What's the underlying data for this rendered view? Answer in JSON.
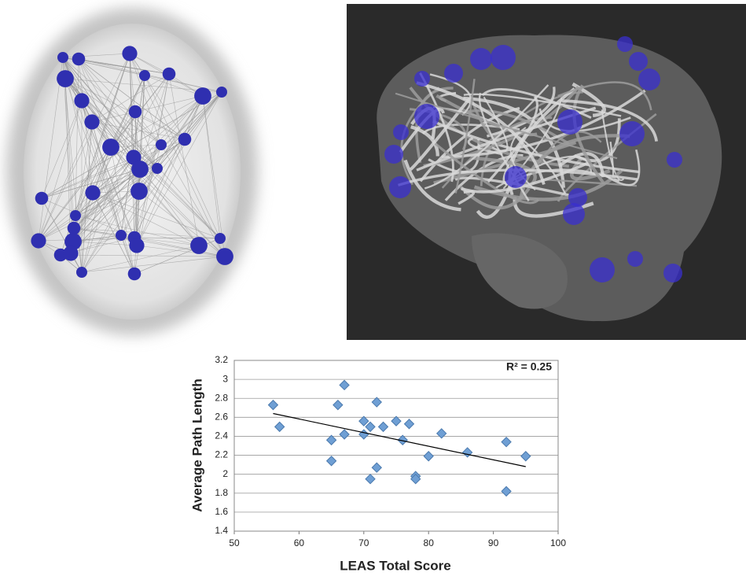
{
  "chart_data": {
    "type": "scatter",
    "xlabel": "LEAS Total Score",
    "ylabel": "Average Path Length",
    "annotation": "R² = 0.25",
    "x": [
      56,
      57,
      65,
      65,
      66,
      67,
      67,
      70,
      70,
      71,
      71,
      72,
      72,
      73,
      75,
      76,
      77,
      78,
      78,
      80,
      82,
      86,
      92,
      92,
      95
    ],
    "values": [
      2.73,
      2.5,
      2.36,
      2.14,
      2.73,
      2.94,
      2.42,
      2.56,
      2.42,
      2.5,
      1.95,
      2.76,
      2.07,
      2.5,
      2.56,
      2.36,
      2.53,
      1.98,
      1.95,
      2.19,
      2.43,
      2.23,
      2.34,
      1.82,
      2.19
    ],
    "color": "#6f9fd4",
    "trendline": {
      "x": [
        56,
        95
      ],
      "y": [
        2.64,
        2.08
      ]
    },
    "xlim": [
      50,
      100
    ],
    "xticks": [
      50,
      60,
      70,
      80,
      90,
      100
    ],
    "ylim": [
      1.4,
      3.2
    ],
    "yticks": [
      1.4,
      1.6,
      1.8,
      2,
      2.2,
      2.4,
      2.6,
      2.8,
      3,
      3.2
    ],
    "grid": true
  }
}
